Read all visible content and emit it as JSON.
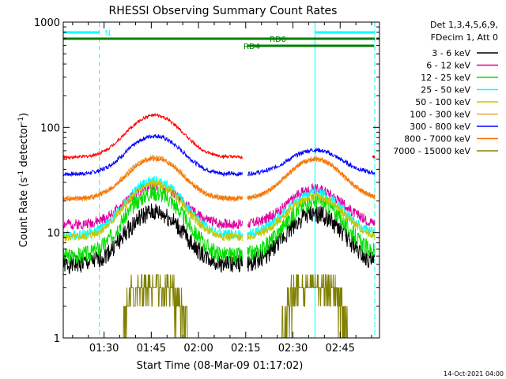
{
  "chart_data": {
    "type": "line",
    "title": "RHESSI Observing Summary Count Rates",
    "xlabel": "Start Time (08-Mar-09 01:17:02)",
    "ylabel_main": "Count Rate (s",
    "ylabel_sup1": "-1",
    "ylabel_mid": " detector",
    "ylabel_sup2": "-1",
    "ylabel_end": ")",
    "y_scale": "log",
    "ylim": [
      1,
      1000
    ],
    "xlim_min": [
      17.03,
      117.5
    ],
    "x_ticks": [
      {
        "min": 30,
        "label": "01:30"
      },
      {
        "min": 45,
        "label": "01:45"
      },
      {
        "min": 60,
        "label": "02:00"
      },
      {
        "min": 75,
        "label": "02:15"
      },
      {
        "min": 90,
        "label": "02:30"
      },
      {
        "min": 105,
        "label": "02:45"
      }
    ],
    "y_ticks": [
      {
        "value": 1,
        "label": "1"
      },
      {
        "value": 10,
        "label": "10"
      },
      {
        "value": 100,
        "label": "100"
      },
      {
        "value": 1000,
        "label": "1000"
      }
    ],
    "legend": {
      "position": "right",
      "header": [
        "Det 1,3,4,5,6,9,",
        "FDecim 1, Att 0"
      ]
    },
    "series": [
      {
        "name": "3 - 6 keV",
        "color": "#000000",
        "base": 5.0,
        "peak1": 15.5,
        "peak2": 15.0,
        "noise": 0.09,
        "seed": 1
      },
      {
        "name": "6 - 12 keV",
        "color": "#e0009e",
        "base": 12.0,
        "peak1": 28.0,
        "peak2": 26.0,
        "noise": 0.05,
        "seed": 2
      },
      {
        "name": "12 - 25 keV",
        "color": "#00e000",
        "base": 6.0,
        "peak1": 24.0,
        "peak2": 20.0,
        "noise": 0.08,
        "seed": 3
      },
      {
        "name": "25 - 50 keV",
        "color": "#00ffff",
        "base": 9.5,
        "peak1": 31.0,
        "peak2": 24.0,
        "noise": 0.05,
        "seed": 4
      },
      {
        "name": "50 - 100 keV",
        "color": "#c8c800",
        "base": 9.0,
        "peak1": 29.0,
        "peak2": 22.0,
        "noise": 0.04,
        "seed": 5
      },
      {
        "name": "100 - 300 keV",
        "color": "#e4a84a",
        "base": 21.0,
        "peak1": 52.0,
        "peak2": 50.0,
        "noise": 0.025,
        "seed": 6
      },
      {
        "name": "300 - 800 keV",
        "color": "#0000ff",
        "base": 36.0,
        "peak1": 83.0,
        "peak2": 61.0,
        "noise": 0.02,
        "seed": 7
      },
      {
        "name": "800 - 7000 keV",
        "color": "#ff6e00",
        "base": 21.0,
        "peak1": 50.0,
        "peak2": 50.0,
        "noise": 0.02,
        "seed": 8
      },
      {
        "name": "7000 - 15000 keV",
        "color": "#808000",
        "base": 1.0,
        "peak1": 3.5,
        "peak2": 3.0,
        "noise": 0.0,
        "seed": 9
      },
      {
        "name": "",
        "color": "#ff0000",
        "base": 52.0,
        "peak1": 130.0,
        "peak2": 0,
        "noise": 0.015,
        "seed": 10
      }
    ],
    "flags": [
      {
        "name": "N",
        "color": "#00ffff",
        "row": 1,
        "segments": [
          [
            17.03,
            28.5
          ],
          [
            97.0,
            116.0
          ]
        ]
      },
      {
        "name": "RD0",
        "color": "#008000",
        "row": 2,
        "segments": [
          [
            17.03,
            116.0
          ],
          [
            116.5,
            117.5
          ]
        ]
      },
      {
        "name": "RD4",
        "color": "#008000",
        "row": 3,
        "segments": [
          [
            75.5,
            115.8
          ]
        ]
      }
    ],
    "vlines": [
      {
        "min": 28.5,
        "color": "#00ffff",
        "style": "dashed"
      },
      {
        "min": 97.0,
        "color": "#00ffff",
        "style": "solid"
      },
      {
        "min": 116.0,
        "color": "#00ffff",
        "style": "dashed"
      }
    ],
    "footer_date": "14-Oct-2021 04:00"
  }
}
